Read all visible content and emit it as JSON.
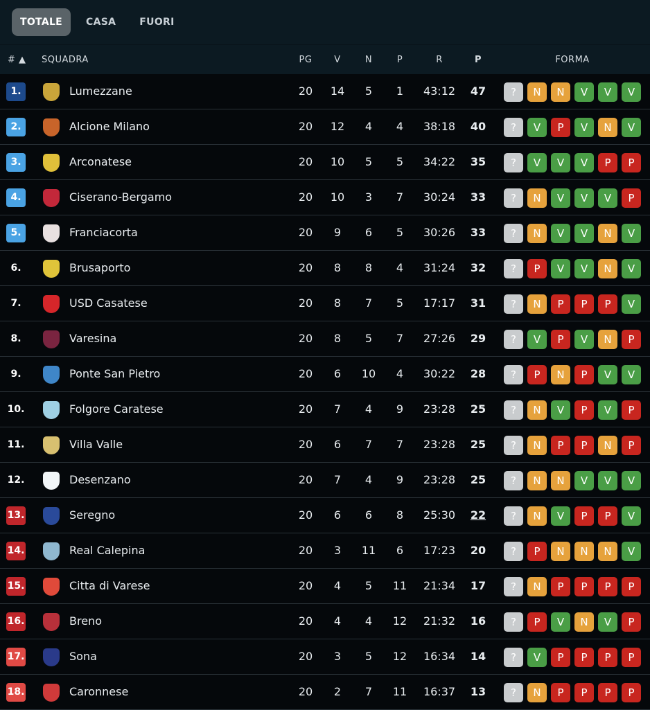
{
  "tabs": [
    {
      "label": "TOTALE",
      "active": true
    },
    {
      "label": "CASA"
    },
    {
      "label": "FUORI"
    }
  ],
  "columns": {
    "rank": "# ▲",
    "team": "SQUADRA",
    "pg": "PG",
    "v": "V",
    "n": "N",
    "p": "P",
    "r": "R",
    "pts": "P",
    "form": "FORMA"
  },
  "colors": {
    "rank_top": "#1d4a8c",
    "rank_promo": "#4aa3e4",
    "rank_releg": "#c0262b",
    "rank_releg2": "#e04a45",
    "V": "#4a9e46",
    "N": "#e6a23c",
    "P": "#c8261f",
    "?": "#c9ccce"
  },
  "rows": [
    {
      "pos": "1.",
      "zone": "rank_top",
      "team": "Lumezzane",
      "logo": "#c9a53a",
      "pg": "20",
      "v": "14",
      "n": "5",
      "p": "1",
      "r": "43:12",
      "pts": "47",
      "form": [
        "?",
        "N",
        "N",
        "V",
        "V",
        "V"
      ]
    },
    {
      "pos": "2.",
      "zone": "rank_promo",
      "team": "Alcione Milano",
      "logo": "#c8642a",
      "pg": "20",
      "v": "12",
      "n": "4",
      "p": "4",
      "r": "38:18",
      "pts": "40",
      "form": [
        "?",
        "V",
        "P",
        "V",
        "N",
        "V"
      ]
    },
    {
      "pos": "3.",
      "zone": "rank_promo",
      "team": "Arconatese",
      "logo": "#e0c03a",
      "pg": "20",
      "v": "10",
      "n": "5",
      "p": "5",
      "r": "34:22",
      "pts": "35",
      "form": [
        "?",
        "V",
        "V",
        "V",
        "P",
        "P"
      ]
    },
    {
      "pos": "4.",
      "zone": "rank_promo",
      "team": "Ciserano-Bergamo",
      "logo": "#c3283a",
      "pg": "20",
      "v": "10",
      "n": "3",
      "p": "7",
      "r": "30:24",
      "pts": "33",
      "form": [
        "?",
        "N",
        "V",
        "V",
        "V",
        "P"
      ]
    },
    {
      "pos": "5.",
      "zone": "rank_promo",
      "team": "Franciacorta",
      "logo": "#e8e0e0",
      "pg": "20",
      "v": "9",
      "n": "6",
      "p": "5",
      "r": "30:26",
      "pts": "33",
      "form": [
        "?",
        "N",
        "V",
        "V",
        "N",
        "V"
      ]
    },
    {
      "pos": "6.",
      "zone": "",
      "team": "Brusaporto",
      "logo": "#e0c43a",
      "pg": "20",
      "v": "8",
      "n": "8",
      "p": "4",
      "r": "31:24",
      "pts": "32",
      "form": [
        "?",
        "P",
        "V",
        "V",
        "N",
        "V"
      ]
    },
    {
      "pos": "7.",
      "zone": "",
      "team": "USD Casatese",
      "logo": "#d6262a",
      "pg": "20",
      "v": "8",
      "n": "7",
      "p": "5",
      "r": "17:17",
      "pts": "31",
      "form": [
        "?",
        "N",
        "P",
        "P",
        "P",
        "V"
      ]
    },
    {
      "pos": "8.",
      "zone": "",
      "team": "Varesina",
      "logo": "#7a2440",
      "pg": "20",
      "v": "8",
      "n": "5",
      "p": "7",
      "r": "27:26",
      "pts": "29",
      "form": [
        "?",
        "V",
        "P",
        "V",
        "N",
        "P"
      ]
    },
    {
      "pos": "9.",
      "zone": "",
      "team": "Ponte San Pietro",
      "logo": "#3f86c8",
      "pg": "20",
      "v": "6",
      "n": "10",
      "p": "4",
      "r": "30:22",
      "pts": "28",
      "form": [
        "?",
        "P",
        "N",
        "P",
        "V",
        "V"
      ]
    },
    {
      "pos": "10.",
      "zone": "",
      "team": "Folgore Caratese",
      "logo": "#9fd0e4",
      "pg": "20",
      "v": "7",
      "n": "4",
      "p": "9",
      "r": "23:28",
      "pts": "25",
      "form": [
        "?",
        "N",
        "V",
        "P",
        "V",
        "P"
      ]
    },
    {
      "pos": "11.",
      "zone": "",
      "team": "Villa Valle",
      "logo": "#d8c070",
      "pg": "20",
      "v": "6",
      "n": "7",
      "p": "7",
      "r": "23:28",
      "pts": "25",
      "form": [
        "?",
        "N",
        "P",
        "P",
        "N",
        "P"
      ]
    },
    {
      "pos": "12.",
      "zone": "",
      "team": "Desenzano",
      "logo": "#f2f6f8",
      "pg": "20",
      "v": "7",
      "n": "4",
      "p": "9",
      "r": "23:28",
      "pts": "25",
      "form": [
        "?",
        "N",
        "N",
        "V",
        "V",
        "V"
      ]
    },
    {
      "pos": "13.",
      "zone": "rank_releg",
      "team": "Seregno",
      "logo": "#2a4a9a",
      "pg": "20",
      "v": "6",
      "n": "6",
      "p": "8",
      "r": "25:30",
      "pts": "22",
      "underline": true,
      "form": [
        "?",
        "N",
        "V",
        "P",
        "P",
        "V"
      ]
    },
    {
      "pos": "14.",
      "zone": "rank_releg",
      "team": "Real Calepina",
      "logo": "#8fb8d0",
      "pg": "20",
      "v": "3",
      "n": "11",
      "p": "6",
      "r": "17:23",
      "pts": "20",
      "form": [
        "?",
        "P",
        "N",
        "N",
        "N",
        "V"
      ]
    },
    {
      "pos": "15.",
      "zone": "rank_releg",
      "team": "Citta di Varese",
      "logo": "#e04a3a",
      "pg": "20",
      "v": "4",
      "n": "5",
      "p": "11",
      "r": "21:34",
      "pts": "17",
      "form": [
        "?",
        "N",
        "P",
        "P",
        "P",
        "P"
      ]
    },
    {
      "pos": "16.",
      "zone": "rank_releg",
      "team": "Breno",
      "logo": "#b8303a",
      "pg": "20",
      "v": "4",
      "n": "4",
      "p": "12",
      "r": "21:32",
      "pts": "16",
      "form": [
        "?",
        "P",
        "V",
        "N",
        "V",
        "P"
      ]
    },
    {
      "pos": "17.",
      "zone": "rank_releg2",
      "team": "Sona",
      "logo": "#2a3a8a",
      "pg": "20",
      "v": "3",
      "n": "5",
      "p": "12",
      "r": "16:34",
      "pts": "14",
      "form": [
        "?",
        "V",
        "P",
        "P",
        "P",
        "P"
      ]
    },
    {
      "pos": "18.",
      "zone": "rank_releg2",
      "team": "Caronnese",
      "logo": "#d03a3a",
      "pg": "20",
      "v": "2",
      "n": "7",
      "p": "11",
      "r": "16:37",
      "pts": "13",
      "form": [
        "?",
        "N",
        "P",
        "P",
        "P",
        "P"
      ]
    }
  ]
}
